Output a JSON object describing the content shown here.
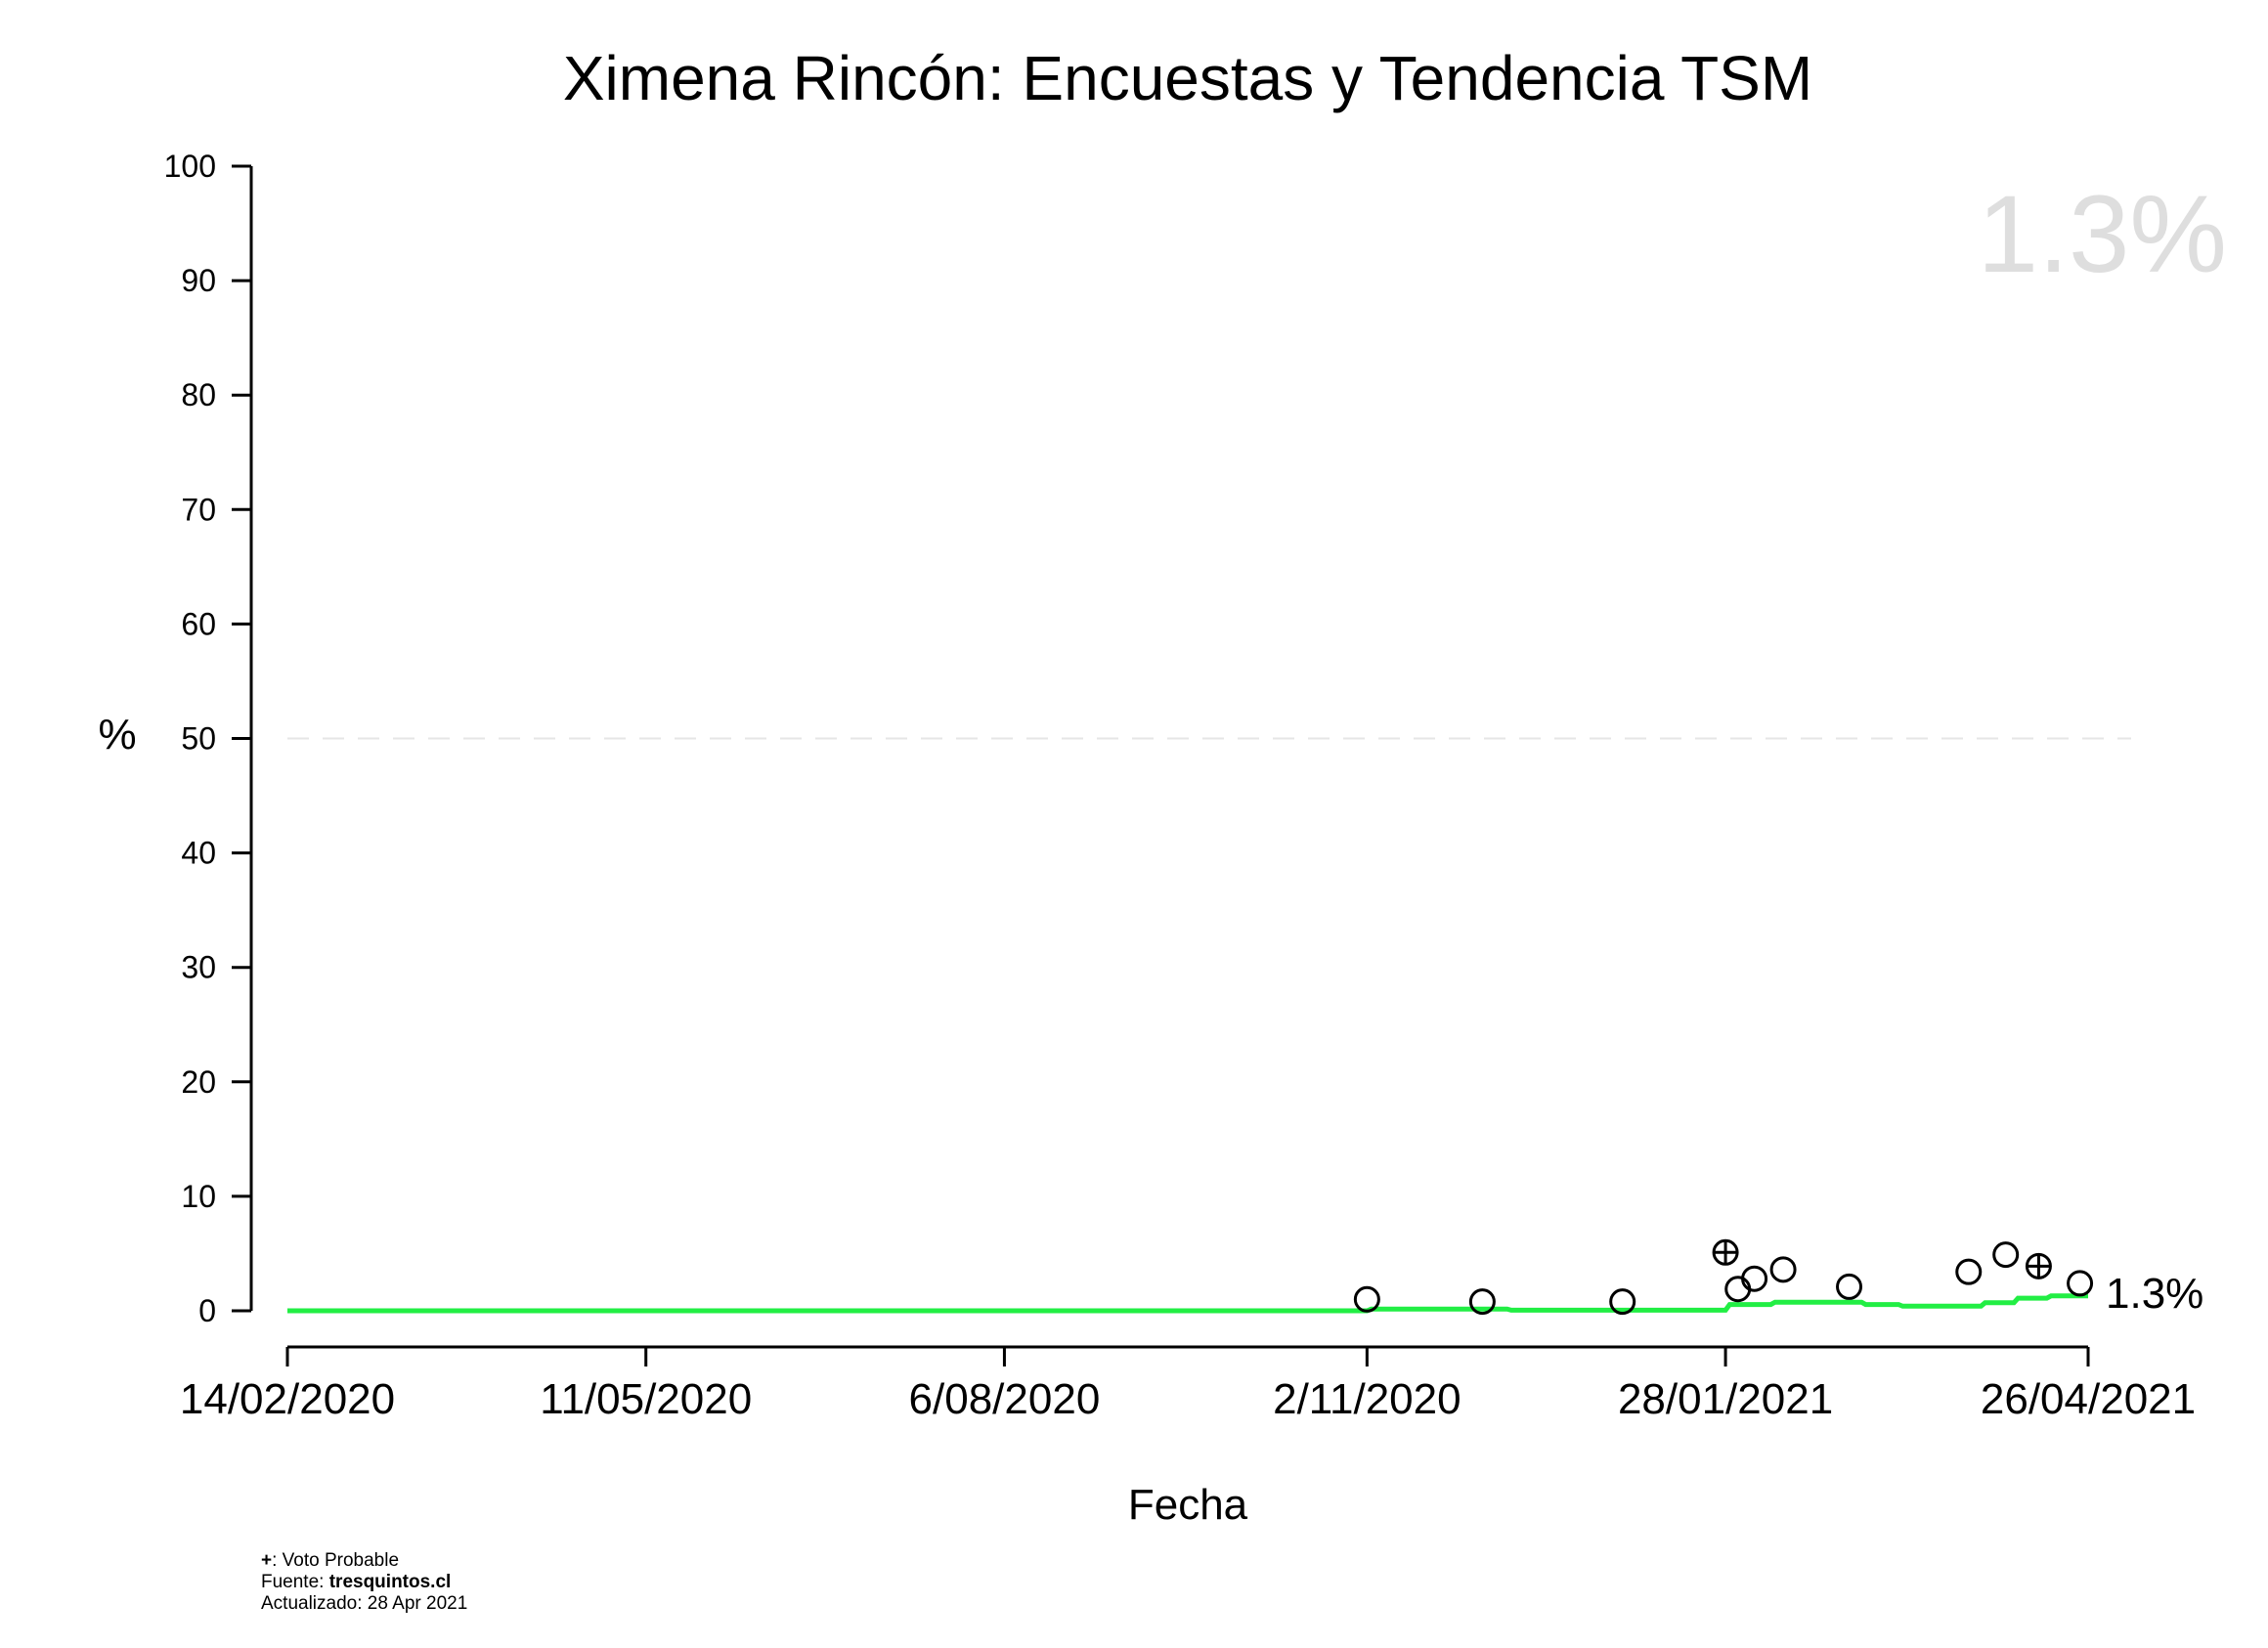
{
  "chart_data": {
    "type": "line",
    "title": "Ximena Rincón: Encuestas y Tendencia TSM",
    "xlabel": "Fecha",
    "ylabel": "%",
    "ylim": [
      0,
      100
    ],
    "yticks": [
      0,
      10,
      20,
      30,
      40,
      50,
      60,
      70,
      80,
      90,
      100
    ],
    "xlim": [
      "2020-02-14",
      "2021-04-26"
    ],
    "xticks": [
      {
        "date": "2020-02-14",
        "label": "14/02/2020"
      },
      {
        "date": "2020-05-11",
        "label": "11/05/2020"
      },
      {
        "date": "2020-08-06",
        "label": "6/08/2020"
      },
      {
        "date": "2020-11-02",
        "label": "2/11/2020"
      },
      {
        "date": "2021-01-28",
        "label": "28/01/2021"
      },
      {
        "date": "2021-04-26",
        "label": "26/04/2021"
      }
    ],
    "reference_line": {
      "y": 50,
      "style": "dashed",
      "color": "#e6e6e6"
    },
    "watermark": "1.3%",
    "end_label": "1.3%",
    "grid": false,
    "trend": {
      "name": "",
      "color": "#22ee44",
      "points": [
        {
          "x": "2020-02-14",
          "y": 0.0
        },
        {
          "x": "2020-11-02",
          "y": 0.0
        },
        {
          "x": "2020-11-03",
          "y": 0.15
        },
        {
          "x": "2020-12-06",
          "y": 0.15
        },
        {
          "x": "2020-12-07",
          "y": 0.05
        },
        {
          "x": "2021-01-28",
          "y": 0.05
        },
        {
          "x": "2021-01-29",
          "y": 0.55
        },
        {
          "x": "2021-02-08",
          "y": 0.55
        },
        {
          "x": "2021-02-09",
          "y": 0.75
        },
        {
          "x": "2021-03-02",
          "y": 0.75
        },
        {
          "x": "2021-03-03",
          "y": 0.55
        },
        {
          "x": "2021-03-11",
          "y": 0.55
        },
        {
          "x": "2021-03-12",
          "y": 0.4
        },
        {
          "x": "2021-03-31",
          "y": 0.4
        },
        {
          "x": "2021-04-01",
          "y": 0.7
        },
        {
          "x": "2021-04-08",
          "y": 0.7
        },
        {
          "x": "2021-04-09",
          "y": 1.1
        },
        {
          "x": "2021-04-16",
          "y": 1.1
        },
        {
          "x": "2021-04-17",
          "y": 1.3
        },
        {
          "x": "2021-04-26",
          "y": 1.3
        }
      ]
    },
    "polls": [
      {
        "x": "2020-11-02",
        "y": 1.0,
        "marker": "circle"
      },
      {
        "x": "2020-11-30",
        "y": 0.8,
        "marker": "circle"
      },
      {
        "x": "2021-01-03",
        "y": 0.8,
        "marker": "circle"
      },
      {
        "x": "2021-01-28",
        "y": 5.1,
        "marker": "circle-plus"
      },
      {
        "x": "2021-01-31",
        "y": 1.9,
        "marker": "circle"
      },
      {
        "x": "2021-02-04",
        "y": 2.8,
        "marker": "circle"
      },
      {
        "x": "2021-02-11",
        "y": 3.6,
        "marker": "circle"
      },
      {
        "x": "2021-02-27",
        "y": 2.1,
        "marker": "circle"
      },
      {
        "x": "2021-03-28",
        "y": 3.4,
        "marker": "circle"
      },
      {
        "x": "2021-04-06",
        "y": 4.9,
        "marker": "circle"
      },
      {
        "x": "2021-04-14",
        "y": 3.9,
        "marker": "circle-plus"
      },
      {
        "x": "2021-04-24",
        "y": 2.4,
        "marker": "circle"
      }
    ]
  },
  "footer": {
    "plus_symbol": "+",
    "legend_text": ": Voto Probable",
    "source_label": "Fuente: ",
    "source_value": "tresquintos.cl",
    "updated_text": "Actualizado: 28 Apr 2021"
  }
}
